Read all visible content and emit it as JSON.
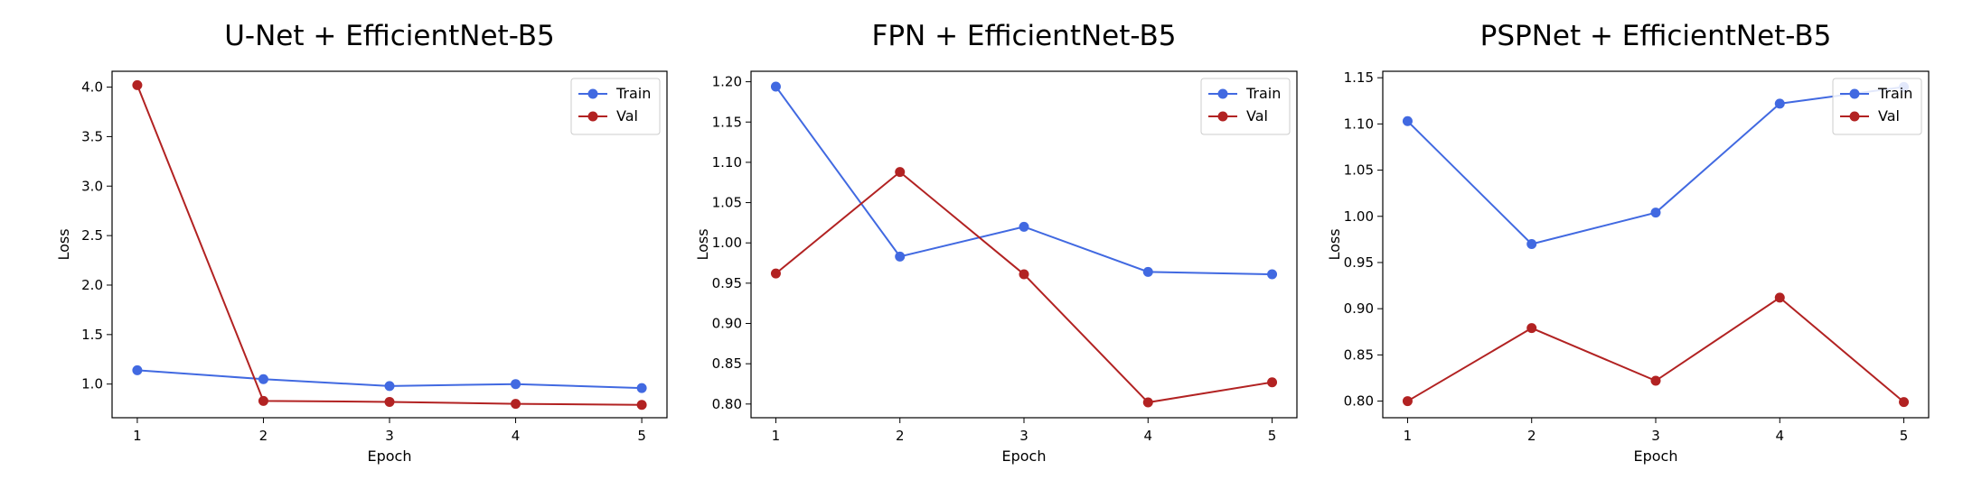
{
  "chart_data": [
    {
      "type": "line",
      "title": "U-Net + EfficientNet-B5",
      "xlabel": "Epoch",
      "ylabel": "Loss",
      "x": [
        1,
        2,
        3,
        4,
        5
      ],
      "xlim": [
        0.8,
        5.2
      ],
      "ylim": [
        0.66,
        4.16
      ],
      "yticks": [
        1.0,
        1.5,
        2.0,
        2.5,
        3.0,
        3.5,
        4.0
      ],
      "ytick_format": 1,
      "grid": false,
      "legend": "top-right",
      "series": [
        {
          "name": "Train",
          "color": "#4169e1",
          "values": [
            1.14,
            1.05,
            0.98,
            1.0,
            0.96
          ]
        },
        {
          "name": "Val",
          "color": "#b22222",
          "values": [
            4.02,
            0.83,
            0.82,
            0.8,
            0.79
          ]
        }
      ]
    },
    {
      "type": "line",
      "title": "FPN + EfficientNet-B5",
      "xlabel": "Epoch",
      "ylabel": "Loss",
      "x": [
        1,
        2,
        3,
        4,
        5
      ],
      "xlim": [
        0.8,
        5.2
      ],
      "ylim": [
        0.783,
        1.213
      ],
      "yticks": [
        0.8,
        0.85,
        0.9,
        0.95,
        1.0,
        1.05,
        1.1,
        1.15,
        1.2
      ],
      "ytick_format": 2,
      "grid": false,
      "legend": "top-right",
      "series": [
        {
          "name": "Train",
          "color": "#4169e1",
          "values": [
            1.194,
            0.983,
            1.02,
            0.964,
            0.961
          ]
        },
        {
          "name": "Val",
          "color": "#b22222",
          "values": [
            0.962,
            1.088,
            0.961,
            0.802,
            0.827
          ]
        }
      ]
    },
    {
      "type": "line",
      "title": "PSPNet + EfficientNet-B5",
      "xlabel": "Epoch",
      "ylabel": "Loss",
      "x": [
        1,
        2,
        3,
        4,
        5
      ],
      "xlim": [
        0.8,
        5.2
      ],
      "ylim": [
        0.782,
        1.157
      ],
      "yticks": [
        0.8,
        0.85,
        0.9,
        0.95,
        1.0,
        1.05,
        1.1,
        1.15
      ],
      "ytick_format": 2,
      "grid": false,
      "legend": "top-right",
      "series": [
        {
          "name": "Train",
          "color": "#4169e1",
          "values": [
            1.103,
            0.97,
            1.004,
            1.122,
            1.14
          ]
        },
        {
          "name": "Val",
          "color": "#b22222",
          "values": [
            0.8,
            0.879,
            0.822,
            0.912,
            0.799
          ]
        }
      ]
    }
  ]
}
